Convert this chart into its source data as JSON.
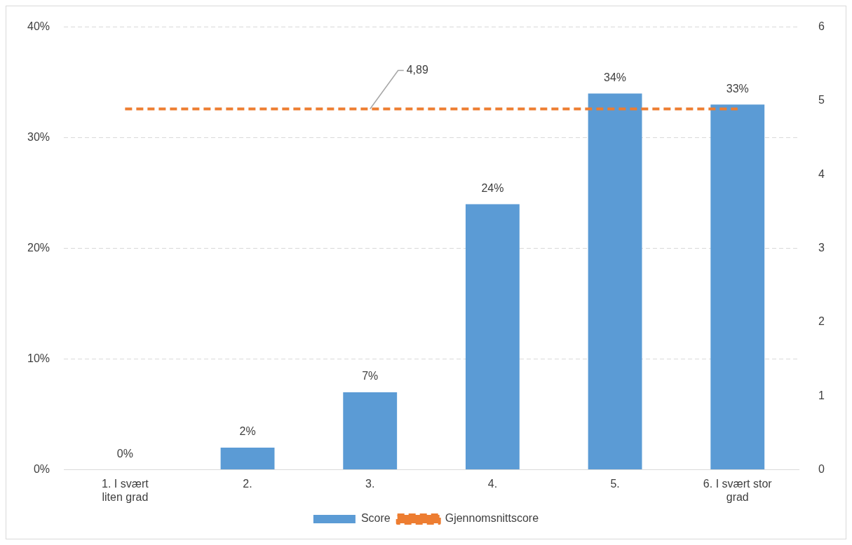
{
  "chart_data": {
    "type": "bar",
    "categories": [
      "1. I svært liten grad",
      "2.",
      "3.",
      "4.",
      "5.",
      "6. I svært stor grad"
    ],
    "series": [
      {
        "name": "Score",
        "color": "#5b9bd5",
        "values": [
          0,
          2,
          7,
          24,
          34,
          33
        ],
        "value_labels": [
          "0%",
          "2%",
          "7%",
          "24%",
          "34%",
          "33%"
        ]
      },
      {
        "name": "Gjennomsnittscore",
        "type": "line",
        "axis": "y2",
        "color": "#ed7d31",
        "line_style": "dashed",
        "marker": "none",
        "values": [
          4.89,
          4.89,
          4.89,
          4.89,
          4.89,
          4.89
        ]
      }
    ],
    "ylim": [
      0,
      40
    ],
    "yticks": [
      {
        "value": 0,
        "label": "0%"
      },
      {
        "value": 10,
        "label": "10%"
      },
      {
        "value": 20,
        "label": "20%"
      },
      {
        "value": 30,
        "label": "30%"
      },
      {
        "value": 40,
        "label": "40%"
      }
    ],
    "y2lim": [
      0,
      6
    ],
    "y2ticks": [
      0,
      1,
      2,
      3,
      4,
      5,
      6
    ],
    "annotations": [
      {
        "text": "4,89",
        "x": "3.",
        "y": 32.6
      }
    ],
    "grid": "y",
    "legend": "bottom"
  }
}
